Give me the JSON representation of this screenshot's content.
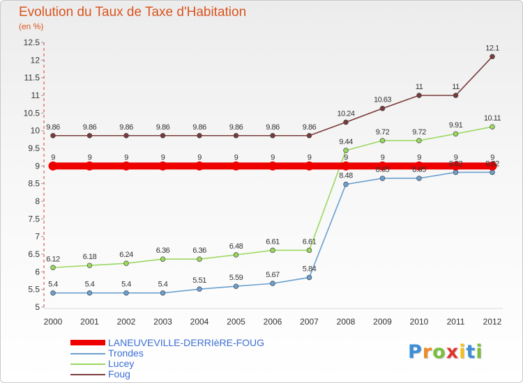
{
  "header": {
    "title": "Evolution du Taux de Taxe d'Habitation",
    "subtitle": "(en %)"
  },
  "logo": {
    "letters": [
      "P",
      "r",
      "o",
      "x",
      "i",
      "t",
      "i"
    ],
    "colors": [
      "#3b8fd6",
      "#f08a24",
      "#7cbf3f",
      "#e0342f",
      "#f0c21f",
      "#3b8fd6",
      "#7cbf3f"
    ]
  },
  "chart_data": {
    "type": "line",
    "x": [
      "2000",
      "2001",
      "2002",
      "2003",
      "2004",
      "2005",
      "2006",
      "2007",
      "2008",
      "2009",
      "2010",
      "2011",
      "2012"
    ],
    "y_ticks": [
      "5",
      "5.5",
      "6",
      "6.5",
      "7",
      "7.5",
      "8",
      "8.5",
      "9",
      "9.5",
      "10",
      "10.5",
      "11",
      "11.5",
      "12",
      "12.5"
    ],
    "ylim": [
      5,
      12.5
    ],
    "grid": false,
    "legend": "bottom-left",
    "series": [
      {
        "name": "LANEUVEVILLE-DERRIèRE-FOUG",
        "color": "#ee0000",
        "values": [
          9,
          9,
          9,
          9,
          9,
          9,
          9,
          9,
          9,
          9,
          9,
          9,
          9
        ],
        "labels": [
          "9",
          "9",
          "9",
          "9",
          "9",
          "9",
          "9",
          "9",
          "9",
          "9",
          "9",
          "9",
          "9"
        ]
      },
      {
        "name": "Trondes",
        "color": "#6b9fcf",
        "values": [
          5.4,
          5.4,
          5.4,
          5.4,
          5.51,
          5.59,
          5.67,
          5.84,
          8.48,
          8.65,
          8.65,
          8.82,
          8.82
        ],
        "labels": [
          "5.4",
          "5.4",
          "5.4",
          "5.4",
          "5.51",
          "5.59",
          "5.67",
          "5.84",
          "8.48",
          "8.65",
          "8.65",
          "8.82",
          "8.82"
        ]
      },
      {
        "name": "Lucey",
        "color": "#9ad85f",
        "values": [
          6.12,
          6.18,
          6.24,
          6.36,
          6.36,
          6.48,
          6.61,
          6.61,
          9.44,
          9.72,
          9.72,
          9.91,
          10.11
        ],
        "labels": [
          "6.12",
          "6.18",
          "6.24",
          "6.36",
          "6.36",
          "6.48",
          "6.61",
          "6.61",
          "9.44",
          "9.72",
          "9.72",
          "9.91",
          "10.11"
        ]
      },
      {
        "name": "Foug",
        "color": "#7a3a3a",
        "values": [
          9.86,
          9.86,
          9.86,
          9.86,
          9.86,
          9.86,
          9.86,
          9.86,
          10.24,
          10.63,
          11,
          11,
          12.1
        ],
        "labels": [
          "9.86",
          "9.86",
          "9.86",
          "9.86",
          "9.86",
          "9.86",
          "9.86",
          "9.86",
          "10.24",
          "10.63",
          "11",
          "11",
          "12.1"
        ]
      }
    ]
  }
}
